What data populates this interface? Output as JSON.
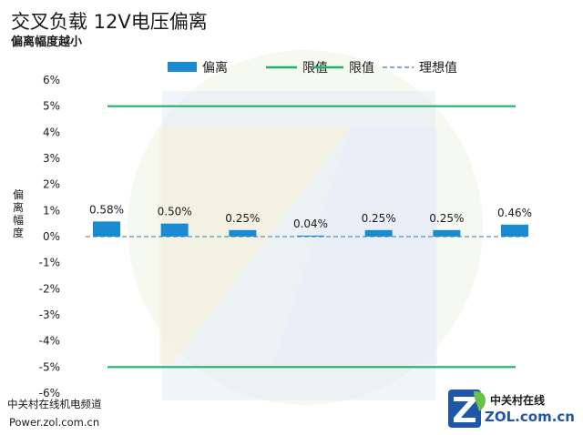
{
  "chart_data": {
    "type": "bar",
    "title": "交叉负载 12V电压偏离",
    "subtitle": "偏离幅度越小",
    "ylabel": "偏离幅度",
    "categories": [
      "",
      "",
      "",
      "",
      "",
      "",
      ""
    ],
    "series": [
      {
        "name": "偏离",
        "values": [
          0.58,
          0.5,
          0.25,
          0.04,
          0.25,
          0.25,
          0.46
        ],
        "color": "#1a8bd0"
      }
    ],
    "value_labels": [
      "0.58%",
      "0.50%",
      "0.25%",
      "0.04%",
      "0.25%",
      "0.25%",
      "0.46%"
    ],
    "reference_lines": [
      {
        "name": "限值",
        "value": 5,
        "color": "#1fb26b",
        "style": "solid"
      },
      {
        "name": "限值",
        "value": -5,
        "color": "#1fb26b",
        "style": "solid"
      },
      {
        "name": "理想值",
        "value": 0,
        "color": "#5a8fc0",
        "style": "dashed"
      }
    ],
    "legend": [
      "偏离",
      "限值",
      "限值",
      "理想值"
    ],
    "legend_position": "top",
    "ylim": [
      -6,
      6
    ],
    "yticks": [
      6,
      5,
      4,
      3,
      2,
      1,
      0,
      -1,
      -2,
      -3,
      -4,
      -5,
      -6
    ],
    "ytick_labels": [
      "6%",
      "5%",
      "4%",
      "3%",
      "2%",
      "1%",
      "0%",
      "-1%",
      "-2%",
      "-3%",
      "-4%",
      "-5%",
      "-6%"
    ],
    "grid": false
  },
  "footer": {
    "channel": "中关村在线机电频道",
    "url": "Power.zol.com.cn"
  },
  "brand": {
    "name_cn": "中关村在线",
    "name_en": "ZOL.com.cn"
  },
  "colors": {
    "bar": "#1a8bd0",
    "limit": "#1fb26b",
    "ideal": "#5a8fc0"
  }
}
